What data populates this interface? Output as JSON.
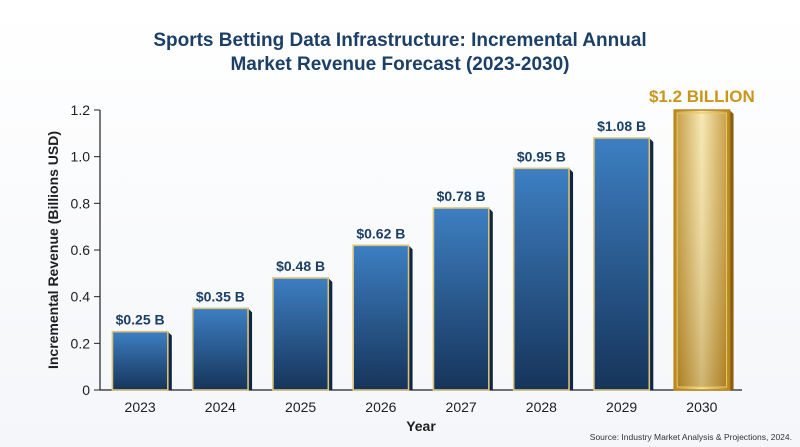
{
  "chart_data": {
    "type": "bar",
    "title": "Sports Betting Data Infrastructure: Incremental Annual Market Revenue Forecast (2023-2030)",
    "title_lines": [
      "Sports Betting Data Infrastructure: Incremental Annual",
      "Market Revenue Forecast (2023-2030)"
    ],
    "xlabel": "Year",
    "ylabel": "Incremental Revenue (Billions USD)",
    "categories": [
      "2023",
      "2024",
      "2025",
      "2026",
      "2027",
      "2028",
      "2029",
      "2030"
    ],
    "values": [
      0.25,
      0.35,
      0.48,
      0.62,
      0.78,
      0.95,
      1.08,
      1.2
    ],
    "data_labels": [
      "$0.25 B",
      "$0.35 B",
      "$0.48 B",
      "$0.62 B",
      "$0.78 B",
      "$0.95 B",
      "$1.08 B",
      "$1.2 BILLION"
    ],
    "highlight_index": 7,
    "ylim": [
      0,
      1.2
    ],
    "yticks": [
      0,
      0.2,
      0.4,
      0.6,
      0.8,
      1.0,
      1.2
    ],
    "ytick_labels": [
      "0",
      "0.2",
      "0.4",
      "0.6",
      "0.8",
      "1.0",
      "1.2"
    ],
    "grid": false,
    "legend": "none",
    "colors": {
      "bar": "#2f6aa8",
      "bar_dark": "#16345a",
      "bar_border": "#d9c27a",
      "highlight": "#d4a52c",
      "highlight_light": "#f5e4a6",
      "title": "#1b3f67",
      "highlight_label": "#c9961a"
    },
    "source": "Source: Industry Market Analysis & Projections, 2024."
  }
}
